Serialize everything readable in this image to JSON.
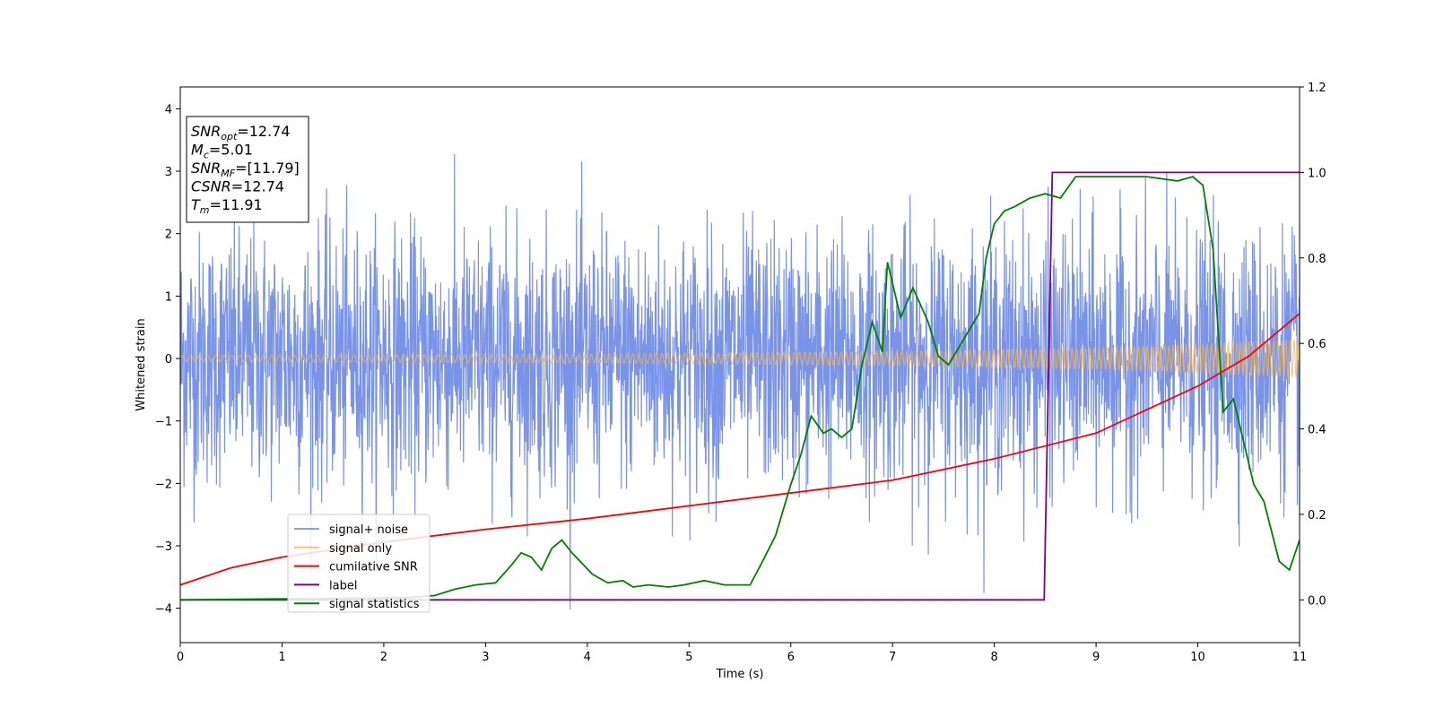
{
  "chart_data": {
    "type": "line",
    "xlabel": "Time (s)",
    "ylabel": "Whitened strain",
    "xlim": [
      0,
      11
    ],
    "ylim": [
      -4.55,
      4.35
    ],
    "y2lim": [
      -0.1,
      1.2
    ],
    "x_ticks": [
      "0",
      "1",
      "2",
      "3",
      "4",
      "5",
      "6",
      "7",
      "8",
      "9",
      "10",
      "11"
    ],
    "y_ticks": [
      "−4",
      "−3",
      "−2",
      "−1",
      "0",
      "1",
      "2",
      "3",
      "4"
    ],
    "y2_ticks": [
      "0.0",
      "0.2",
      "0.4",
      "0.6",
      "0.8",
      "1.0",
      "1.2"
    ],
    "grid": false,
    "legend_placement": "lower-left",
    "annotations": [
      {
        "name": "SNR",
        "sub": "opt",
        "value": "=12.74"
      },
      {
        "name": "M",
        "sub": "c",
        "value": "=5.01"
      },
      {
        "name": "SNR",
        "sub": "MF",
        "value": "=[11.79]"
      },
      {
        "name": "CSNR",
        "sub": "",
        "value": "=12.74"
      },
      {
        "name": "T",
        "sub": "m",
        "value": "=11.91"
      }
    ],
    "series": [
      {
        "name": "signal+ noise",
        "color": "#6a87e6",
        "axis": "left",
        "description_values": {
          "noise_std": 1.0,
          "min": -4.15,
          "max": 3.95
        }
      },
      {
        "name": "signal only",
        "color": "#f5b553",
        "axis": "left",
        "amplitude_envelope": [
          [
            0,
            0.05
          ],
          [
            4,
            0.07
          ],
          [
            7,
            0.11
          ],
          [
            9,
            0.17
          ],
          [
            10,
            0.22
          ],
          [
            11,
            0.3
          ]
        ]
      },
      {
        "name": "cumilative SNR",
        "color": "#ff0000",
        "axis": "right",
        "x": [
          0,
          0.5,
          1,
          2,
          3,
          4,
          5,
          6,
          7,
          8,
          9,
          10,
          10.5,
          11
        ],
        "y": [
          0.035,
          0.075,
          0.1,
          0.135,
          0.165,
          0.19,
          0.22,
          0.25,
          0.28,
          0.33,
          0.39,
          0.5,
          0.57,
          0.67
        ]
      },
      {
        "name": "label",
        "color": "#800080",
        "axis": "right",
        "x": [
          0,
          8.49,
          8.57,
          11
        ],
        "y": [
          0.0,
          0.0,
          1.0,
          1.0
        ]
      },
      {
        "name": "signal statistics",
        "color": "#008000",
        "axis": "right",
        "x": [
          0,
          2.2,
          2.5,
          2.7,
          2.9,
          3.1,
          3.25,
          3.35,
          3.45,
          3.55,
          3.65,
          3.75,
          3.85,
          3.95,
          4.05,
          4.2,
          4.35,
          4.45,
          4.6,
          4.8,
          4.95,
          5.15,
          5.35,
          5.6,
          5.7,
          5.85,
          6.0,
          6.1,
          6.2,
          6.32,
          6.4,
          6.5,
          6.6,
          6.7,
          6.8,
          6.9,
          6.95,
          7.0,
          7.08,
          7.2,
          7.35,
          7.45,
          7.55,
          7.7,
          7.85,
          7.92,
          8.0,
          8.1,
          8.2,
          8.35,
          8.5,
          8.65,
          8.8,
          9.0,
          9.2,
          9.5,
          9.8,
          9.95,
          10.05,
          10.15,
          10.25,
          10.35,
          10.45,
          10.55,
          10.65,
          10.8,
          10.9,
          11.0
        ],
        "y": [
          0.0,
          0.005,
          0.01,
          0.025,
          0.035,
          0.04,
          0.08,
          0.11,
          0.1,
          0.07,
          0.12,
          0.14,
          0.11,
          0.085,
          0.06,
          0.04,
          0.045,
          0.03,
          0.035,
          0.03,
          0.035,
          0.045,
          0.035,
          0.035,
          0.08,
          0.15,
          0.27,
          0.34,
          0.43,
          0.39,
          0.4,
          0.38,
          0.4,
          0.55,
          0.65,
          0.58,
          0.79,
          0.74,
          0.66,
          0.73,
          0.65,
          0.57,
          0.55,
          0.61,
          0.67,
          0.8,
          0.88,
          0.91,
          0.92,
          0.94,
          0.95,
          0.94,
          0.99,
          0.99,
          0.99,
          0.99,
          0.98,
          0.99,
          0.97,
          0.82,
          0.44,
          0.47,
          0.37,
          0.27,
          0.23,
          0.09,
          0.07,
          0.14
        ]
      }
    ]
  }
}
